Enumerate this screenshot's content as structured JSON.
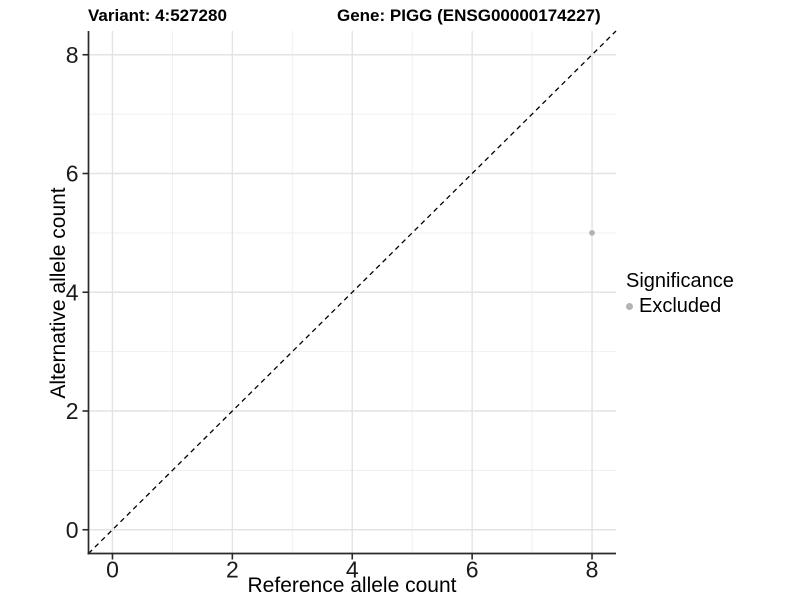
{
  "chart_data": {
    "type": "scatter",
    "title_left": "Variant: 4:527280",
    "title_right": "Gene: PIGG (ENSG00000174227)",
    "xlabel": "Reference allele count",
    "ylabel": "Alternative allele count",
    "xlim": [
      -0.4,
      8.4
    ],
    "ylim": [
      -0.4,
      8.4
    ],
    "xticks": [
      0,
      2,
      4,
      6,
      8
    ],
    "yticks": [
      0,
      2,
      4,
      6,
      8
    ],
    "grid": {
      "major": [
        0,
        2,
        4,
        6,
        8
      ],
      "minor": [
        1,
        3,
        5,
        7
      ]
    },
    "points": [
      {
        "x": 8,
        "y": 5,
        "series": "Excluded"
      }
    ],
    "identity_line": {
      "equation": "y = x",
      "style": "dashed"
    },
    "legend": {
      "title": "Significance",
      "position": "right",
      "items": [
        {
          "label": "Excluded",
          "color": "#b3b3b3"
        }
      ]
    }
  },
  "colors": {
    "point": "#b3b3b3",
    "grid_major": "#e3e3e3",
    "grid_minor": "#efefef",
    "axis_line": "#2a2a2a",
    "dashed_line": "#000000",
    "tick_text": "#1a1a1a",
    "background": "#ffffff"
  }
}
